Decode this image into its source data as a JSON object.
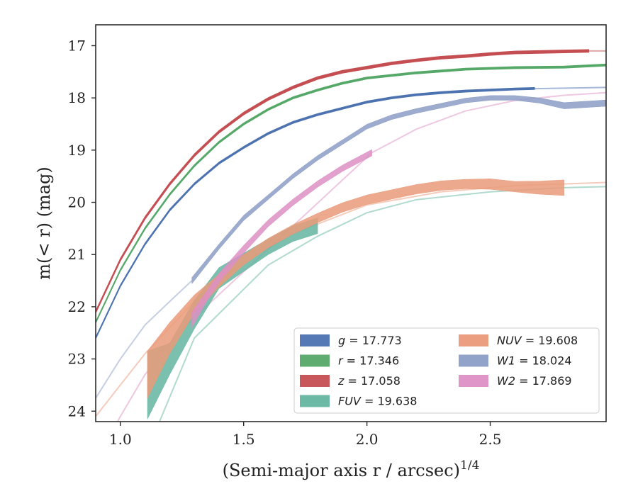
{
  "chart_data": {
    "type": "line",
    "title": "",
    "xlabel": "(Semi-major axis r / arcsec)",
    "xlabel_exponent": "1/4",
    "ylabel": "m(< r) (mag)",
    "xlim": [
      0.9,
      2.97
    ],
    "ylim": [
      24.2,
      16.6
    ],
    "y_inverted": true,
    "x_ticks": [
      1.0,
      1.5,
      2.0,
      2.5
    ],
    "x_tick_labels": [
      "1.0",
      "1.5",
      "2.0",
      "2.5"
    ],
    "y_ticks": [
      17,
      18,
      19,
      20,
      21,
      22,
      23,
      24
    ],
    "y_tick_labels": [
      "17",
      "18",
      "19",
      "20",
      "21",
      "22",
      "23",
      "24"
    ],
    "grid": false,
    "legend_position": "lower-right",
    "legend": [
      {
        "key": "g",
        "band": "g",
        "value": "17.773",
        "italic": false
      },
      {
        "key": "r",
        "band": "r",
        "value": "17.346",
        "italic": false
      },
      {
        "key": "z",
        "band": "z",
        "value": "17.058",
        "italic": false
      },
      {
        "key": "FUV",
        "band": "FUV",
        "value": "19.638",
        "italic": true
      },
      {
        "key": "NUV",
        "band": "NUV",
        "value": "19.608",
        "italic": true
      },
      {
        "key": "W1",
        "band": "W1",
        "value": "18.024",
        "italic": true
      },
      {
        "key": "W2",
        "band": "W2",
        "value": "17.869",
        "italic": true
      }
    ],
    "series": [
      {
        "key": "g",
        "color": "#4c72b0",
        "profile": {
          "x": [
            0.9,
            1.0,
            1.1,
            1.2,
            1.3,
            1.4,
            1.5,
            1.6,
            1.7,
            1.8,
            1.9,
            2.0,
            2.1,
            2.2,
            2.3,
            2.4,
            2.5,
            2.6,
            2.68
          ],
          "y": [
            22.6,
            21.6,
            20.8,
            20.15,
            19.65,
            19.25,
            18.95,
            18.68,
            18.47,
            18.32,
            18.2,
            18.08,
            18.0,
            17.94,
            17.9,
            17.87,
            17.85,
            17.83,
            17.82
          ],
          "w": [
            1.5,
            1.5,
            1.5,
            1.5,
            1.5,
            1.5,
            1.5,
            1.5,
            1.5,
            1.5,
            1.5,
            1.5,
            1.5,
            1.5,
            1.5,
            1.5,
            1.5,
            1.5,
            1.5
          ]
        },
        "model": {
          "x": [
            2.6,
            2.97
          ],
          "y": [
            17.83,
            17.8
          ]
        }
      },
      {
        "key": "r",
        "color": "#55a868",
        "profile": {
          "x": [
            0.9,
            1.0,
            1.1,
            1.2,
            1.3,
            1.4,
            1.5,
            1.6,
            1.7,
            1.8,
            1.9,
            2.0,
            2.2,
            2.4,
            2.6,
            2.8,
            2.97
          ],
          "y": [
            22.3,
            21.3,
            20.5,
            19.85,
            19.3,
            18.85,
            18.5,
            18.22,
            18.0,
            17.85,
            17.72,
            17.62,
            17.52,
            17.45,
            17.42,
            17.41,
            17.37
          ],
          "w": [
            1.5,
            1.5,
            1.5,
            1.5,
            1.5,
            1.5,
            1.5,
            1.5,
            1.5,
            1.5,
            1.5,
            1.5,
            1.5,
            1.5,
            1.5,
            1.5,
            1.5
          ]
        },
        "model": null
      },
      {
        "key": "z",
        "color": "#c44e52",
        "profile": {
          "x": [
            0.9,
            1.0,
            1.1,
            1.2,
            1.3,
            1.4,
            1.5,
            1.6,
            1.7,
            1.8,
            1.9,
            2.0,
            2.1,
            2.2,
            2.3,
            2.4,
            2.5,
            2.6,
            2.7,
            2.8,
            2.9
          ],
          "y": [
            22.1,
            21.1,
            20.3,
            19.65,
            19.1,
            18.65,
            18.3,
            18.02,
            17.8,
            17.62,
            17.5,
            17.42,
            17.34,
            17.28,
            17.23,
            17.2,
            17.16,
            17.13,
            17.12,
            17.11,
            17.1
          ],
          "w": [
            2,
            2,
            2,
            2,
            2,
            2,
            2,
            2,
            2,
            2,
            2,
            2,
            2,
            2,
            2,
            2,
            2,
            2,
            2,
            2,
            2
          ]
        },
        "model": {
          "x": [
            2.8,
            2.97
          ],
          "y": [
            17.1,
            17.1
          ]
        }
      },
      {
        "key": "FUV",
        "color": "#64b5a0",
        "profile": {
          "x": [
            1.11,
            1.2,
            1.3,
            1.4,
            1.5,
            1.6,
            1.7,
            1.8
          ],
          "y": [
            23.5,
            23.0,
            22.15,
            21.45,
            21.15,
            20.85,
            20.6,
            20.45
          ],
          "w": [
            1.3,
            0.6,
            0.55,
            0.4,
            0.35,
            0.3,
            0.3,
            0.3
          ]
        },
        "model": {
          "x": [
            1.0,
            1.3,
            1.6,
            1.8,
            2.0,
            2.2,
            2.5,
            2.8,
            2.97
          ],
          "y": [
            26.0,
            22.6,
            21.2,
            20.65,
            20.2,
            19.95,
            19.8,
            19.72,
            19.7
          ]
        }
      },
      {
        "key": "NUV",
        "color": "#ea9a79",
        "profile": {
          "x": [
            1.11,
            1.2,
            1.3,
            1.4,
            1.5,
            1.6,
            1.7,
            1.8,
            1.9,
            2.0,
            2.1,
            2.2,
            2.3,
            2.4,
            2.5,
            2.6,
            2.7,
            2.8
          ],
          "y": [
            23.3,
            22.6,
            21.95,
            21.5,
            21.1,
            20.78,
            20.52,
            20.3,
            20.1,
            19.95,
            19.85,
            19.75,
            19.68,
            19.65,
            19.65,
            19.7,
            19.72,
            19.72
          ],
          "w": [
            0.9,
            0.6,
            0.35,
            0.25,
            0.2,
            0.18,
            0.18,
            0.18,
            0.18,
            0.18,
            0.18,
            0.18,
            0.18,
            0.18,
            0.2,
            0.2,
            0.25,
            0.3
          ]
        },
        "model": {
          "x": [
            0.9,
            1.0,
            1.1,
            1.3,
            1.5,
            1.7,
            2.0,
            2.3,
            2.6,
            2.97
          ],
          "y": [
            24.1,
            23.5,
            22.9,
            21.9,
            21.15,
            20.6,
            20.05,
            19.8,
            19.68,
            19.62
          ]
        }
      },
      {
        "key": "W1",
        "color": "#8c9ec6",
        "profile": {
          "x": [
            1.29,
            1.4,
            1.5,
            1.6,
            1.7,
            1.8,
            1.9,
            2.0,
            2.1,
            2.2,
            2.3,
            2.4,
            2.5,
            2.6,
            2.7,
            2.8,
            2.97
          ],
          "y": [
            21.5,
            20.85,
            20.3,
            19.9,
            19.5,
            19.15,
            18.85,
            18.55,
            18.37,
            18.25,
            18.15,
            18.05,
            18.0,
            18.0,
            18.05,
            18.15,
            18.1
          ],
          "w": [
            0.12,
            0.1,
            0.1,
            0.09,
            0.09,
            0.09,
            0.09,
            0.09,
            0.09,
            0.09,
            0.09,
            0.09,
            0.09,
            0.09,
            0.1,
            0.12,
            0.12
          ]
        },
        "model": {
          "x": [
            0.9,
            1.0,
            1.1,
            1.2,
            1.29
          ],
          "y": [
            23.75,
            23.0,
            22.35,
            21.9,
            21.5
          ]
        }
      },
      {
        "key": "W2",
        "color": "#dd8fc4",
        "profile": {
          "x": [
            1.29,
            1.35,
            1.4,
            1.5,
            1.6,
            1.7,
            1.8,
            1.9,
            2.02
          ],
          "y": [
            22.25,
            21.8,
            21.45,
            20.9,
            20.4,
            20.0,
            19.65,
            19.35,
            19.05
          ],
          "w": [
            0.3,
            0.2,
            0.18,
            0.15,
            0.13,
            0.12,
            0.12,
            0.12,
            0.12
          ]
        },
        "model": {
          "x": [
            0.9,
            1.0,
            1.1,
            1.2,
            1.29,
            2.02,
            2.2,
            2.4,
            2.6,
            2.8,
            2.97
          ],
          "y": [
            25.0,
            24.1,
            23.3,
            22.7,
            22.25,
            19.05,
            18.6,
            18.25,
            18.05,
            17.95,
            17.9
          ]
        }
      }
    ]
  }
}
